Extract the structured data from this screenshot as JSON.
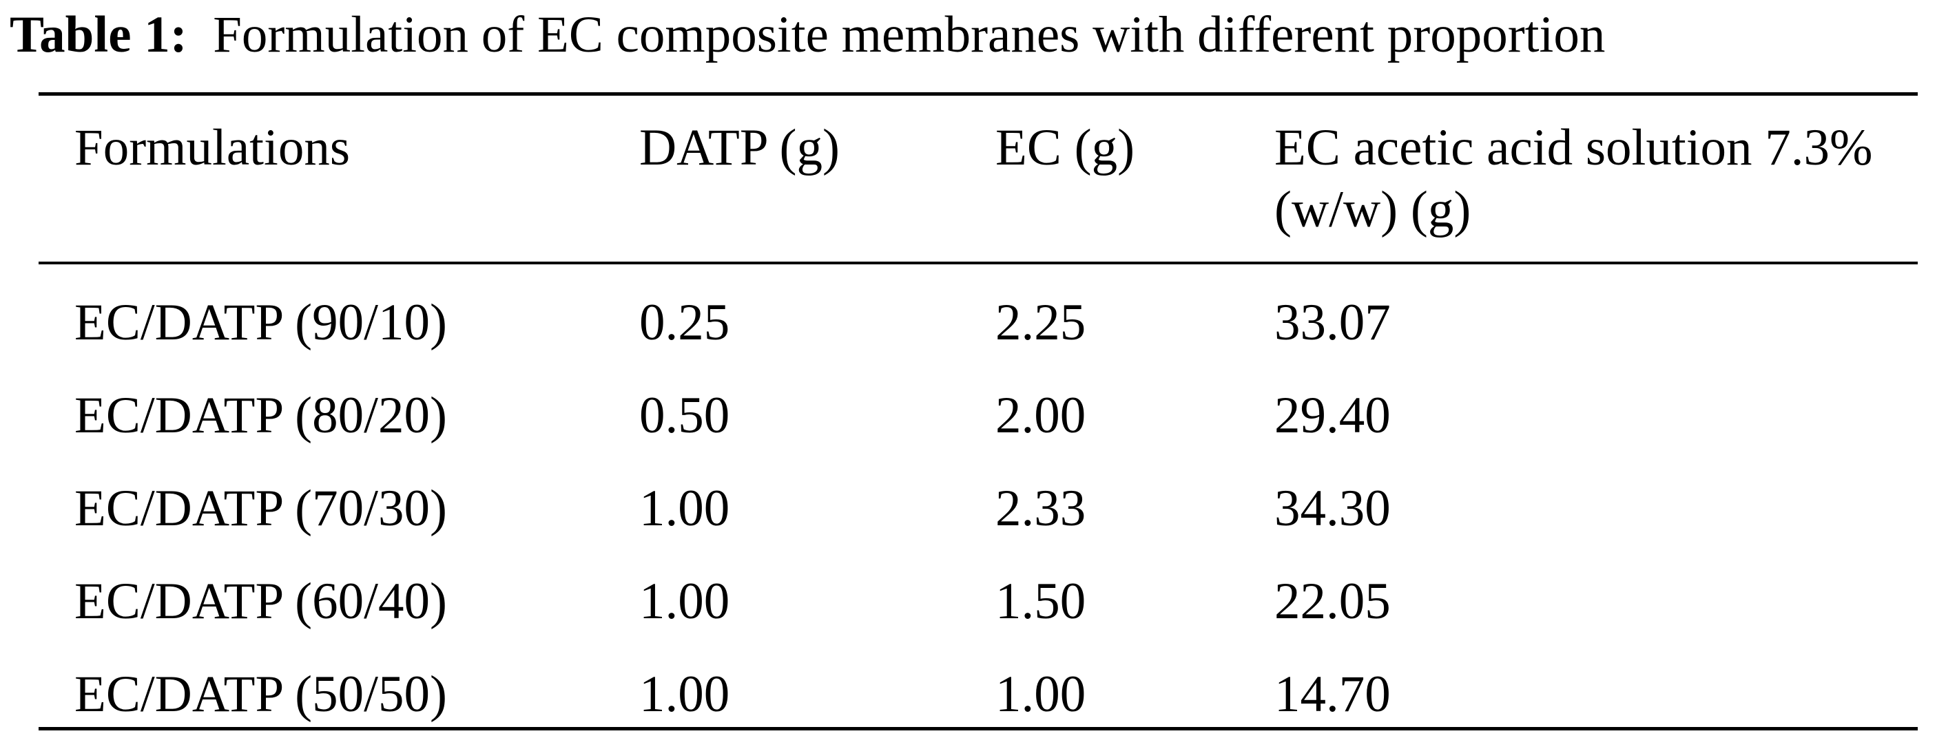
{
  "caption": {
    "label": "Table 1:",
    "text": "Formulation of EC composite membranes with different proportion"
  },
  "table": {
    "headers": [
      "Formulations",
      "DATP (g)",
      "EC (g)",
      "EC acetic acid solution 7.3% (w/w) (g)"
    ],
    "rows": [
      [
        "EC/DATP (90/10)",
        "0.25",
        "2.25",
        "33.07"
      ],
      [
        "EC/DATP (80/20)",
        "0.50",
        "2.00",
        "29.40"
      ],
      [
        "EC/DATP (70/30)",
        "1.00",
        "2.33",
        "34.30"
      ],
      [
        "EC/DATP (60/40)",
        "1.00",
        "1.50",
        "22.05"
      ],
      [
        "EC/DATP (50/50)",
        "1.00",
        "1.00",
        "14.70"
      ]
    ]
  }
}
